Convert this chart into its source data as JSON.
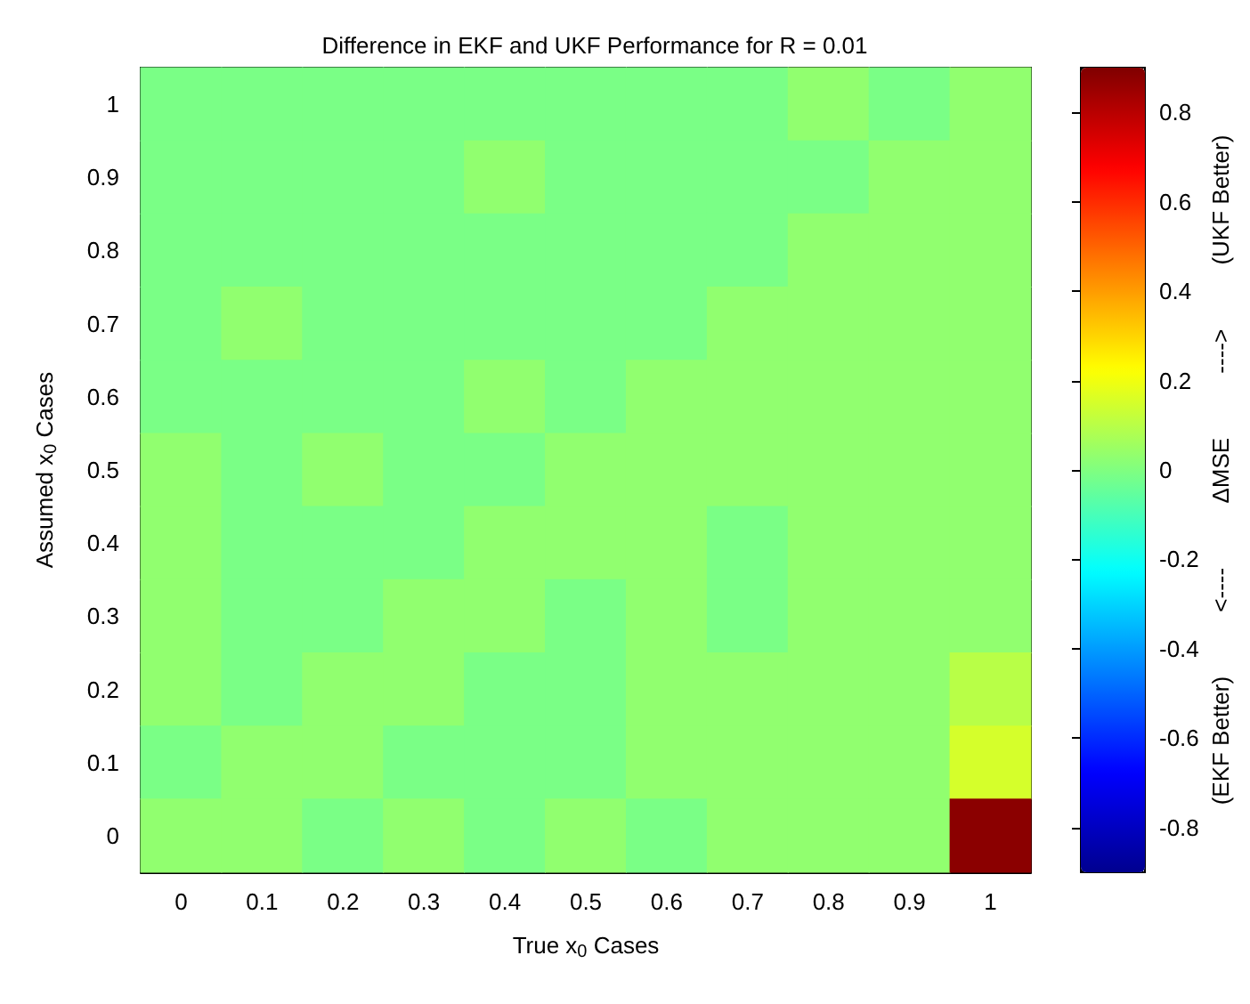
{
  "chart_data": {
    "type": "heatmap",
    "title": "Difference in EKF and UKF Performance for R = 0.01",
    "xlabel": "True x$_{0}$ Cases",
    "ylabel": "Assumed x$_{0}$ Cases",
    "clabel": "(EKF Better)          <----          ΔMSE          ---->          (UKF Better)",
    "categories": [
      "0",
      "0.1",
      "0.2",
      "0.3",
      "0.4",
      "0.5",
      "0.6",
      "0.7",
      "0.8",
      "0.9",
      "1"
    ],
    "y_categories": [
      "1",
      "0.9",
      "0.8",
      "0.7",
      "0.6",
      "0.5",
      "0.4",
      "0.3",
      "0.2",
      "0.1",
      "0"
    ],
    "cells": [
      [
        -0.01,
        -0.01,
        -0.01,
        -0.01,
        -0.01,
        -0.01,
        -0.01,
        -0.01,
        0.03,
        -0.01,
        0.03
      ],
      [
        -0.01,
        -0.01,
        -0.01,
        -0.01,
        0.03,
        -0.01,
        -0.01,
        -0.01,
        -0.01,
        0.03,
        0.03
      ],
      [
        -0.01,
        -0.01,
        -0.01,
        -0.01,
        -0.01,
        -0.01,
        -0.01,
        -0.01,
        0.03,
        0.03,
        0.03
      ],
      [
        -0.01,
        0.03,
        -0.01,
        -0.01,
        -0.01,
        -0.01,
        -0.01,
        0.03,
        0.03,
        0.03,
        0.03
      ],
      [
        -0.01,
        -0.01,
        -0.01,
        -0.01,
        0.03,
        -0.01,
        0.03,
        0.03,
        0.03,
        0.03,
        0.03
      ],
      [
        0.03,
        -0.01,
        0.03,
        -0.01,
        -0.01,
        0.03,
        0.03,
        0.03,
        0.03,
        0.03,
        0.03
      ],
      [
        0.03,
        -0.01,
        -0.01,
        -0.01,
        0.03,
        0.03,
        0.03,
        -0.01,
        0.03,
        0.03,
        0.03
      ],
      [
        0.03,
        -0.01,
        -0.01,
        0.03,
        0.03,
        -0.01,
        0.03,
        -0.01,
        0.03,
        0.03,
        0.03
      ],
      [
        0.03,
        -0.01,
        0.03,
        0.03,
        -0.01,
        -0.01,
        0.03,
        0.03,
        0.03,
        0.03,
        0.1
      ],
      [
        -0.01,
        0.03,
        0.03,
        -0.01,
        -0.01,
        -0.01,
        0.03,
        0.03,
        0.03,
        0.03,
        0.15
      ],
      [
        0.03,
        0.03,
        -0.01,
        0.03,
        -0.01,
        0.03,
        -0.01,
        0.03,
        0.03,
        0.03,
        0.88
      ]
    ],
    "clim": [
      -0.9,
      0.9
    ],
    "cticks": [
      -0.8,
      -0.6,
      -0.4,
      -0.2,
      0,
      0.2,
      0.4,
      0.6,
      0.8
    ]
  }
}
